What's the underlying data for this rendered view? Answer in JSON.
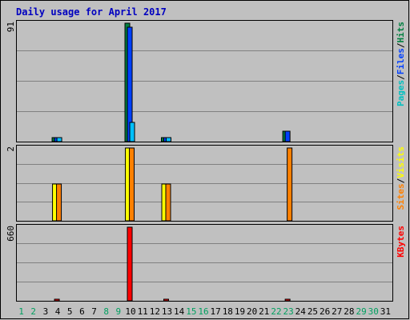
{
  "chart_data": {
    "type": "bar",
    "title": "Daily usage for April 2017",
    "categories": [
      "1",
      "2",
      "3",
      "4",
      "5",
      "6",
      "7",
      "8",
      "9",
      "10",
      "11",
      "12",
      "13",
      "14",
      "15",
      "16",
      "17",
      "18",
      "19",
      "20",
      "21",
      "22",
      "23",
      "24",
      "25",
      "26",
      "27",
      "28",
      "29",
      "30",
      "31"
    ],
    "weekend_days": [
      1,
      2,
      8,
      9,
      15,
      16,
      22,
      23,
      29,
      30
    ],
    "panels": [
      {
        "id": "hits",
        "ymax_label": "91",
        "ylim": [
          0,
          91
        ],
        "legend": [
          {
            "text": "Pages",
            "color": "#00c0c0"
          },
          {
            "text": "/",
            "color": "#000000"
          },
          {
            "text": "Files",
            "color": "#0040ff"
          },
          {
            "text": "/",
            "color": "#000000"
          },
          {
            "text": "Hits",
            "color": "#008040"
          }
        ],
        "series": [
          {
            "name": "Hits",
            "color": "#008040",
            "values": [
              0,
              0,
              0,
              3,
              0,
              0,
              0,
              0,
              0,
              91,
              0,
              0,
              3,
              0,
              0,
              0,
              0,
              0,
              0,
              0,
              0,
              0,
              8,
              0,
              0,
              0,
              0,
              0,
              0,
              0,
              0
            ]
          },
          {
            "name": "Files",
            "color": "#0040ff",
            "values": [
              0,
              0,
              0,
              3,
              0,
              0,
              0,
              0,
              0,
              88,
              0,
              0,
              3,
              0,
              0,
              0,
              0,
              0,
              0,
              0,
              0,
              0,
              8,
              0,
              0,
              0,
              0,
              0,
              0,
              0,
              0
            ]
          },
          {
            "name": "Pages",
            "color": "#00c0ff",
            "values": [
              0,
              0,
              0,
              3,
              0,
              0,
              0,
              0,
              0,
              15,
              0,
              0,
              3,
              0,
              0,
              0,
              0,
              0,
              0,
              0,
              0,
              0,
              0,
              0,
              0,
              0,
              0,
              0,
              0,
              0,
              0
            ]
          }
        ]
      },
      {
        "id": "visits",
        "ymax_label": "2",
        "ylim": [
          0,
          2
        ],
        "legend": [
          {
            "text": "Sites",
            "color": "#ff8000"
          },
          {
            "text": "/",
            "color": "#000000"
          },
          {
            "text": "Visits",
            "color": "#ffff00"
          }
        ],
        "series": [
          {
            "name": "Visits",
            "color": "#ffff00",
            "values": [
              0,
              0,
              0,
              1,
              0,
              0,
              0,
              0,
              0,
              2,
              0,
              0,
              1,
              0,
              0,
              0,
              0,
              0,
              0,
              0,
              0,
              0,
              0,
              0,
              0,
              0,
              0,
              0,
              0,
              0,
              0
            ]
          },
          {
            "name": "Sites",
            "color": "#ff8000",
            "values": [
              0,
              0,
              0,
              1,
              0,
              0,
              0,
              0,
              0,
              2,
              0,
              0,
              1,
              0,
              0,
              0,
              0,
              0,
              0,
              0,
              0,
              0,
              2,
              0,
              0,
              0,
              0,
              0,
              0,
              0,
              0
            ]
          }
        ]
      },
      {
        "id": "kbytes",
        "ymax_label": "660",
        "ylim": [
          0,
          660
        ],
        "legend": [
          {
            "text": "KBytes",
            "color": "#ff0000"
          }
        ],
        "series": [
          {
            "name": "KBytes",
            "color": "#ff0000",
            "values": [
              0,
              0,
              0,
              3,
              0,
              0,
              0,
              0,
              0,
              660,
              0,
              0,
              3,
              0,
              0,
              0,
              0,
              0,
              0,
              0,
              0,
              0,
              3,
              0,
              0,
              0,
              0,
              0,
              0,
              0,
              0
            ]
          }
        ]
      }
    ],
    "colors": {
      "background": "#c0c0c0",
      "title": "#0000ff",
      "weekday_label": "#000000",
      "weekend_label": "#00a060",
      "gridline": "#808080"
    }
  }
}
